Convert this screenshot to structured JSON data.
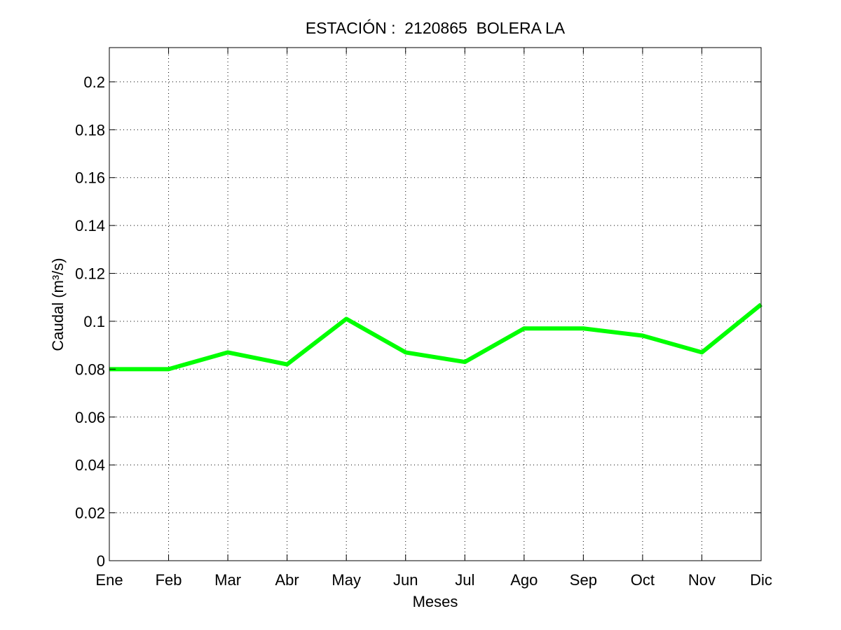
{
  "chart_data": {
    "type": "line",
    "title": "ESTACIÓN :  2120865  BOLERA LA",
    "xlabel": "Meses",
    "ylabel": "Caudal (m³/s)",
    "categories": [
      "Ene",
      "Feb",
      "Mar",
      "Abr",
      "May",
      "Jun",
      "Jul",
      "Ago",
      "Sep",
      "Oct",
      "Nov",
      "Dic"
    ],
    "series": [
      {
        "values": [
          0.08,
          0.08,
          0.087,
          0.082,
          0.101,
          0.087,
          0.083,
          0.097,
          0.097,
          0.094,
          0.087,
          0.107
        ],
        "color": "#00ff00"
      }
    ],
    "ylim": [
      0,
      0.2143
    ],
    "yticks": [
      0,
      0.02,
      0.04,
      0.06,
      0.08,
      0.1,
      0.12,
      0.14,
      0.16,
      0.18,
      0.2
    ],
    "ytick_labels": [
      "0",
      "0.02",
      "0.04",
      "0.06",
      "0.08",
      "0.1",
      "0.12",
      "0.14",
      "0.16",
      "0.18",
      "0.2"
    ],
    "grid": true,
    "legend": "none"
  }
}
